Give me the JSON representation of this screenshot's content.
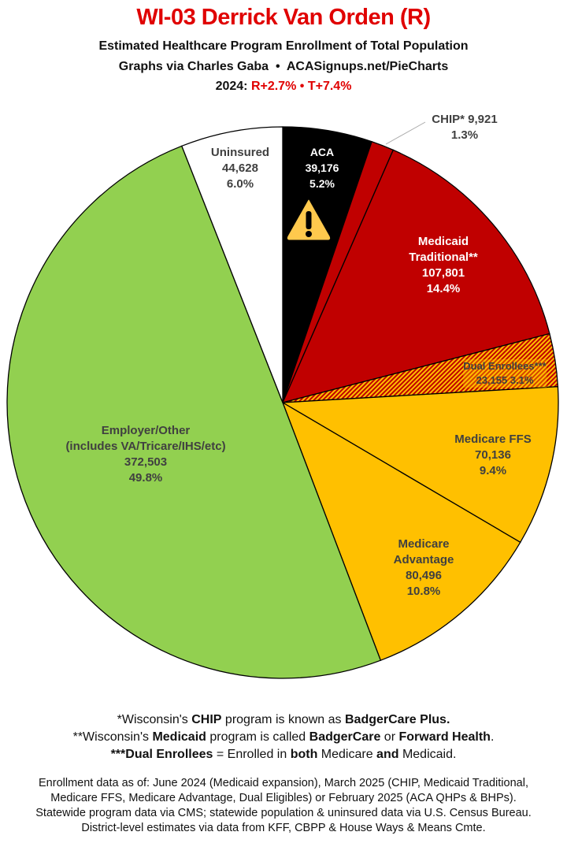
{
  "header": {
    "title": "WI-03 Derrick Van Orden (R)",
    "subtitle": "Estimated Healthcare Program Enrollment of Total Population",
    "credit_left": "Graphs via Charles Gaba",
    "bullet": "•",
    "credit_right": "ACASignups.net/PieCharts",
    "year_label": "2024:",
    "r_margin": "R+2.7%",
    "t_margin": "T+7.4%"
  },
  "chart_data": {
    "type": "pie",
    "start": "12 o'clock, clockwise",
    "slices": [
      {
        "label": "ACA",
        "value": 39176,
        "percent": "5.2%",
        "pct": 5.2,
        "color": "#000000",
        "text_color": "#ffffff",
        "value_text": "39,176"
      },
      {
        "label": "CHIP*",
        "value": 9921,
        "percent": "1.3%",
        "pct": 1.3,
        "color": "#c00000",
        "text_color": "#404040",
        "value_text": "9,921"
      },
      {
        "label": "Medicaid Traditional**",
        "value": 107801,
        "percent": "14.4%",
        "pct": 14.4,
        "color": "#c00000",
        "text_color": "#ffffff",
        "value_text": "107,801"
      },
      {
        "label": "Dual Enrollees***",
        "value": 23155,
        "percent": "3.1%",
        "pct": 3.1,
        "color": "hatch #c00000/#ffc000",
        "text_color": "#404040",
        "value_text": "23,155"
      },
      {
        "label": "Medicare FFS",
        "value": 70136,
        "percent": "9.4%",
        "pct": 9.4,
        "color": "#ffc000",
        "text_color": "#404040",
        "value_text": "70,136"
      },
      {
        "label": "Medicare Advantage",
        "value": 80496,
        "percent": "10.8%",
        "pct": 10.8,
        "color": "#ffc000",
        "text_color": "#404040",
        "value_text": "80,496"
      },
      {
        "label": "Employer/Other",
        "sublabel": "(includes VA/Tricare/IHS/etc)",
        "value": 372503,
        "percent": "49.8%",
        "pct": 49.8,
        "color": "#92d050",
        "text_color": "#404040",
        "value_text": "372,503"
      },
      {
        "label": "Uninsured",
        "value": 44628,
        "percent": "6.0%",
        "pct": 6.0,
        "color": "#ffffff",
        "text_color": "#404040",
        "value_text": "44,628"
      }
    ],
    "annotation_icon": "warning-icon"
  },
  "footnotes": {
    "n1": [
      "*Wisconsin's ",
      "CHIP",
      " program is known as ",
      "BadgerCare Plus."
    ],
    "n2": [
      "**Wisconsin's ",
      "Medicaid",
      " program is called ",
      "BadgerCare",
      " or ",
      "Forward Health",
      "."
    ],
    "n3": [
      "***Dual Enrollees",
      " = Enrolled in ",
      "both",
      " Medicare ",
      "and",
      " Medicaid."
    ],
    "sources": [
      "Enrollment data as of: June 2024 (Medicaid expansion), March 2025 (CHIP, Medicaid Traditional,",
      "Medicare FFS, Medicare Advantage, Dual Eligibles) or February 2025 (ACA QHPs & BHPs).",
      "Statewide program data via CMS; statewide population & uninsured data via U.S. Census Bureau.",
      "District-level estimates via data from KFF, CBPP & House Ways & Means Cmte."
    ]
  }
}
